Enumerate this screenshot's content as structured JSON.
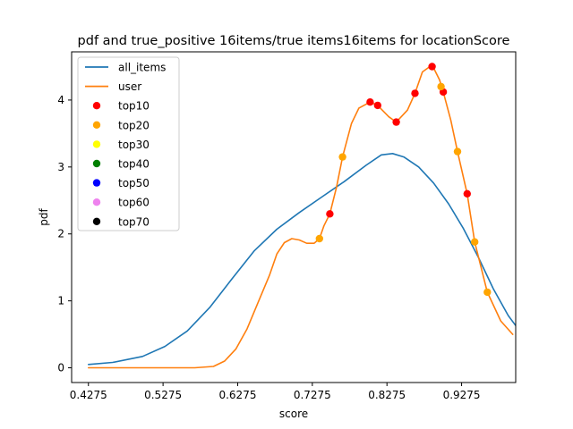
{
  "chart_data": {
    "type": "line",
    "title": "pdf and true_positive 16items/true items16items for locationScore",
    "xlabel": "score",
    "ylabel": "pdf",
    "xlim": [
      0.405,
      1.0
    ],
    "ylim": [
      -0.22,
      4.72
    ],
    "x_ticks": [
      0.4275,
      0.5275,
      0.6275,
      0.7275,
      0.8275,
      0.9275
    ],
    "x_tick_labels": [
      "0.4275",
      "0.5275",
      "0.6275",
      "0.7275",
      "0.8275",
      "0.9275"
    ],
    "y_ticks": [
      0,
      1,
      2,
      3,
      4
    ],
    "y_tick_labels": [
      "0",
      "1",
      "2",
      "3",
      "4"
    ],
    "grid": false,
    "legend_position": "top-left",
    "series": [
      {
        "name": "all_items",
        "kind": "line",
        "color": "#1f77b4",
        "points": [
          [
            0.4275,
            0.05
          ],
          [
            0.46,
            0.08
          ],
          [
            0.5,
            0.17
          ],
          [
            0.53,
            0.32
          ],
          [
            0.56,
            0.55
          ],
          [
            0.59,
            0.9
          ],
          [
            0.62,
            1.33
          ],
          [
            0.65,
            1.75
          ],
          [
            0.68,
            2.07
          ],
          [
            0.71,
            2.32
          ],
          [
            0.74,
            2.55
          ],
          [
            0.77,
            2.78
          ],
          [
            0.8,
            3.03
          ],
          [
            0.82,
            3.18
          ],
          [
            0.835,
            3.2
          ],
          [
            0.85,
            3.15
          ],
          [
            0.87,
            3.0
          ],
          [
            0.89,
            2.76
          ],
          [
            0.91,
            2.45
          ],
          [
            0.93,
            2.08
          ],
          [
            0.95,
            1.65
          ],
          [
            0.97,
            1.18
          ],
          [
            0.99,
            0.78
          ],
          [
            1.0,
            0.63
          ]
        ]
      },
      {
        "name": "user",
        "kind": "line",
        "color": "#ff7f0e",
        "points": [
          [
            0.4275,
            0.0
          ],
          [
            0.5,
            0.0
          ],
          [
            0.57,
            0.0
          ],
          [
            0.595,
            0.02
          ],
          [
            0.61,
            0.1
          ],
          [
            0.625,
            0.28
          ],
          [
            0.64,
            0.58
          ],
          [
            0.655,
            0.98
          ],
          [
            0.67,
            1.38
          ],
          [
            0.68,
            1.7
          ],
          [
            0.69,
            1.87
          ],
          [
            0.7,
            1.93
          ],
          [
            0.71,
            1.91
          ],
          [
            0.72,
            1.86
          ],
          [
            0.73,
            1.86
          ],
          [
            0.737,
            1.93
          ],
          [
            0.743,
            2.12
          ],
          [
            0.751,
            2.3
          ],
          [
            0.76,
            2.7
          ],
          [
            0.768,
            3.15
          ],
          [
            0.78,
            3.65
          ],
          [
            0.79,
            3.88
          ],
          [
            0.805,
            3.97
          ],
          [
            0.815,
            3.92
          ],
          [
            0.83,
            3.75
          ],
          [
            0.84,
            3.67
          ],
          [
            0.855,
            3.85
          ],
          [
            0.865,
            4.1
          ],
          [
            0.875,
            4.42
          ],
          [
            0.885,
            4.5
          ],
          [
            0.89,
            4.48
          ],
          [
            0.898,
            4.3
          ],
          [
            0.903,
            4.12
          ],
          [
            0.913,
            3.7
          ],
          [
            0.922,
            3.23
          ],
          [
            0.935,
            2.6
          ],
          [
            0.945,
            1.88
          ],
          [
            0.962,
            1.13
          ],
          [
            0.98,
            0.7
          ],
          [
            0.996,
            0.5
          ]
        ]
      },
      {
        "name": "top10",
        "kind": "scatter",
        "color": "#ff0000",
        "points": [
          [
            0.751,
            2.3
          ],
          [
            0.805,
            3.97
          ],
          [
            0.815,
            3.92
          ],
          [
            0.84,
            3.67
          ],
          [
            0.865,
            4.1
          ],
          [
            0.888,
            4.5
          ],
          [
            0.903,
            4.12
          ],
          [
            0.935,
            2.6
          ]
        ]
      },
      {
        "name": "top20",
        "kind": "scatter",
        "color": "#ffa500",
        "points": [
          [
            0.737,
            1.93
          ],
          [
            0.768,
            3.15
          ],
          [
            0.9,
            4.2
          ],
          [
            0.922,
            3.23
          ],
          [
            0.945,
            1.88
          ],
          [
            0.962,
            1.13
          ]
        ]
      },
      {
        "name": "top30",
        "kind": "scatter",
        "color": "#ffff00",
        "points": []
      },
      {
        "name": "top40",
        "kind": "scatter",
        "color": "#008000",
        "points": []
      },
      {
        "name": "top50",
        "kind": "scatter",
        "color": "#0000ff",
        "points": []
      },
      {
        "name": "top60",
        "kind": "scatter",
        "color": "#ee82ee",
        "points": []
      },
      {
        "name": "top70",
        "kind": "scatter",
        "color": "#000000",
        "points": []
      }
    ]
  }
}
